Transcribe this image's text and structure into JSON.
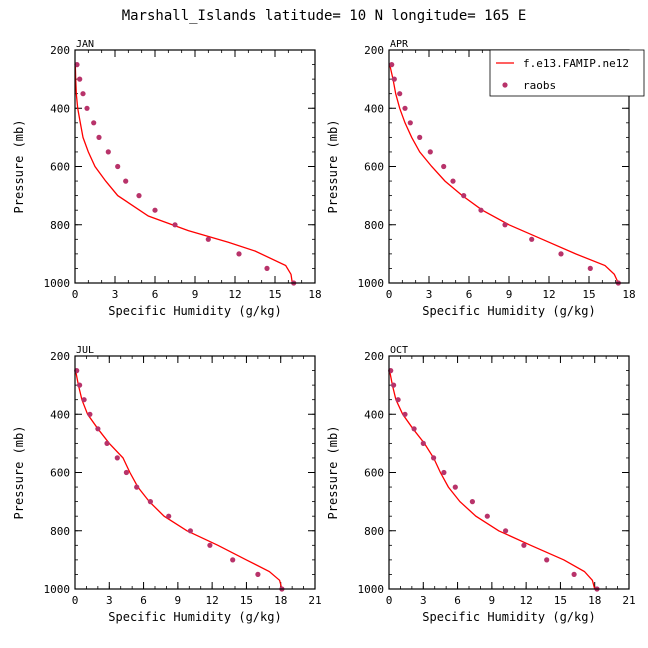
{
  "figure": {
    "title": "Marshall_Islands  latitude= 10 N longitude= 165 E"
  },
  "chart_data": [
    {
      "type": "line",
      "panel_label": "JAN",
      "xlabel": "Specific Humidity (g/kg)",
      "ylabel": "Pressure (mb)",
      "xlim": [
        0,
        18
      ],
      "xticks": [
        0,
        3,
        6,
        9,
        12,
        15,
        18
      ],
      "ylim": [
        1000,
        200
      ],
      "yticks": [
        200,
        400,
        600,
        800,
        1000
      ],
      "series": [
        {
          "name": "f.e13.FAMIP.ne12",
          "style": "line",
          "color": "#ff0000",
          "x": [
            0.02,
            0.05,
            0.1,
            0.2,
            0.4,
            0.6,
            1.0,
            1.5,
            2.3,
            3.2,
            5.5,
            8.5,
            11.5,
            13.5,
            15.8,
            16.2,
            16.3
          ],
          "y": [
            250,
            300,
            350,
            400,
            450,
            500,
            550,
            600,
            650,
            700,
            770,
            820,
            860,
            890,
            940,
            970,
            1000
          ]
        },
        {
          "name": "raobs",
          "style": "points",
          "color": "#b8336a",
          "x": [
            0.15,
            0.35,
            0.6,
            0.9,
            1.4,
            1.8,
            2.5,
            3.2,
            3.8,
            4.8,
            6.0,
            7.5,
            10.0,
            12.3,
            14.4,
            16.4
          ],
          "y": [
            250,
            300,
            350,
            400,
            450,
            500,
            550,
            600,
            650,
            700,
            750,
            800,
            850,
            900,
            950,
            1000
          ]
        }
      ]
    },
    {
      "type": "line",
      "panel_label": "APR",
      "xlabel": "Specific Humidity (g/kg)",
      "ylabel": "Pressure (mb)",
      "xlim": [
        0,
        18
      ],
      "xticks": [
        0,
        3,
        6,
        9,
        12,
        15,
        18
      ],
      "ylim": [
        1000,
        200
      ],
      "yticks": [
        200,
        400,
        600,
        800,
        1000
      ],
      "legend": {
        "position": "top-right",
        "entries": [
          "f.e13.FAMIP.ne12",
          "raobs"
        ]
      },
      "series": [
        {
          "name": "f.e13.FAMIP.ne12",
          "style": "line",
          "color": "#ff0000",
          "x": [
            0.05,
            0.3,
            0.5,
            0.8,
            1.2,
            1.7,
            2.3,
            3.2,
            4.2,
            5.5,
            7.0,
            9.0,
            11.5,
            14.0,
            16.2,
            16.9,
            17.2
          ],
          "y": [
            250,
            300,
            350,
            400,
            450,
            500,
            550,
            600,
            650,
            700,
            750,
            800,
            850,
            900,
            940,
            970,
            1000
          ]
        },
        {
          "name": "raobs",
          "style": "points",
          "color": "#b8336a",
          "x": [
            0.2,
            0.4,
            0.8,
            1.2,
            1.6,
            2.3,
            3.1,
            4.1,
            4.8,
            5.6,
            6.9,
            8.7,
            10.7,
            12.9,
            15.1,
            17.2
          ],
          "y": [
            250,
            300,
            350,
            400,
            450,
            500,
            550,
            600,
            650,
            700,
            750,
            800,
            850,
            900,
            950,
            1000
          ]
        }
      ]
    },
    {
      "type": "line",
      "panel_label": "JUL",
      "xlabel": "Specific Humidity (g/kg)",
      "ylabel": "Pressure (mb)",
      "xlim": [
        0,
        21
      ],
      "xticks": [
        0,
        3,
        6,
        9,
        12,
        15,
        18,
        21
      ],
      "ylim": [
        1000,
        200
      ],
      "yticks": [
        200,
        400,
        600,
        800,
        1000
      ],
      "series": [
        {
          "name": "f.e13.FAMIP.ne12",
          "style": "line",
          "color": "#ff0000",
          "x": [
            0.05,
            0.3,
            0.6,
            1.1,
            2.0,
            3.0,
            4.2,
            4.8,
            5.5,
            6.5,
            7.8,
            9.8,
            12.5,
            15.0,
            17.0,
            17.9,
            18.1
          ],
          "y": [
            250,
            300,
            350,
            400,
            450,
            500,
            550,
            600,
            650,
            700,
            750,
            800,
            850,
            900,
            940,
            970,
            1000
          ]
        },
        {
          "name": "raobs",
          "style": "points",
          "color": "#b8336a",
          "x": [
            0.15,
            0.4,
            0.8,
            1.3,
            2.0,
            2.8,
            3.7,
            4.5,
            5.4,
            6.6,
            8.2,
            10.1,
            11.8,
            13.8,
            16.0,
            18.1
          ],
          "y": [
            250,
            300,
            350,
            400,
            450,
            500,
            550,
            600,
            650,
            700,
            750,
            800,
            850,
            900,
            950,
            1000
          ]
        }
      ]
    },
    {
      "type": "line",
      "panel_label": "OCT",
      "xlabel": "Specific Humidity (g/kg)",
      "ylabel": "Pressure (mb)",
      "xlim": [
        0,
        21
      ],
      "xticks": [
        0,
        3,
        6,
        9,
        12,
        15,
        18,
        21
      ],
      "ylim": [
        1000,
        200
      ],
      "yticks": [
        200,
        400,
        600,
        800,
        1000
      ],
      "series": [
        {
          "name": "f.e13.FAMIP.ne12",
          "style": "line",
          "color": "#ff0000",
          "x": [
            0.05,
            0.3,
            0.6,
            1.2,
            2.1,
            3.1,
            3.9,
            4.5,
            5.2,
            6.2,
            7.6,
            9.6,
            12.4,
            15.3,
            17.1,
            17.8,
            18.0
          ],
          "y": [
            250,
            300,
            350,
            400,
            450,
            500,
            550,
            600,
            650,
            700,
            750,
            800,
            850,
            900,
            940,
            970,
            1000
          ]
        },
        {
          "name": "raobs",
          "style": "points",
          "color": "#b8336a",
          "x": [
            0.15,
            0.4,
            0.8,
            1.4,
            2.2,
            3.0,
            3.9,
            4.8,
            5.8,
            7.3,
            8.6,
            10.2,
            11.8,
            13.8,
            16.2,
            18.2
          ],
          "y": [
            250,
            300,
            350,
            400,
            450,
            500,
            550,
            600,
            650,
            700,
            750,
            800,
            850,
            900,
            950,
            1000
          ]
        }
      ]
    }
  ]
}
